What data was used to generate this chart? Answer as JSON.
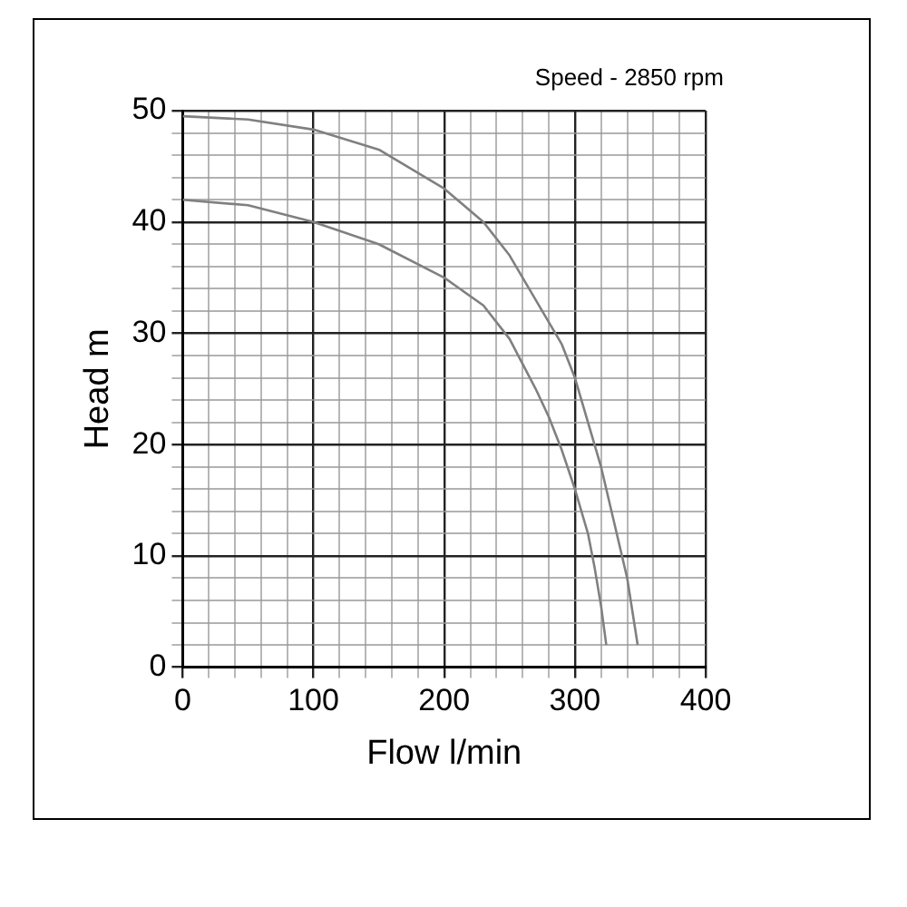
{
  "chart_data": {
    "type": "line",
    "xlabel": "Flow l/min",
    "ylabel": "Head m",
    "annotations": [
      "Speed - 2850 rpm"
    ],
    "xlim": [
      0,
      400
    ],
    "ylim": [
      0,
      50
    ],
    "xticks": [
      0,
      {
        "value": 20,
        "label": null
      },
      {
        "value": 40,
        "label": null
      },
      {
        "value": 60,
        "label": null
      },
      {
        "value": 80,
        "label": null
      },
      100,
      {
        "value": 120,
        "label": null
      },
      {
        "value": 140,
        "label": null
      },
      {
        "value": 160,
        "label": null
      },
      {
        "value": 180,
        "label": null
      },
      200,
      {
        "value": 220,
        "label": null
      },
      {
        "value": 240,
        "label": null
      },
      {
        "value": 260,
        "label": null
      },
      {
        "value": 280,
        "label": null
      },
      300,
      {
        "value": 320,
        "label": null
      },
      {
        "value": 340,
        "label": null
      },
      {
        "value": 360,
        "label": null
      },
      {
        "value": 380,
        "label": null
      },
      400
    ],
    "yticks": [
      0,
      {
        "value": 2,
        "label": null
      },
      {
        "value": 4,
        "label": null
      },
      {
        "value": 6,
        "label": null
      },
      {
        "value": 8,
        "label": null
      },
      10,
      {
        "value": 12,
        "label": null
      },
      {
        "value": 14,
        "label": null
      },
      {
        "value": 16,
        "label": null
      },
      {
        "value": 18,
        "label": null
      },
      20,
      {
        "value": 22,
        "label": null
      },
      {
        "value": 24,
        "label": null
      },
      {
        "value": 26,
        "label": null
      },
      {
        "value": 28,
        "label": null
      },
      30,
      {
        "value": 32,
        "label": null
      },
      {
        "value": 34,
        "label": null
      },
      {
        "value": 36,
        "label": null
      },
      {
        "value": 38,
        "label": null
      },
      40,
      {
        "value": 42,
        "label": null
      },
      {
        "value": 44,
        "label": null
      },
      {
        "value": 46,
        "label": null
      },
      {
        "value": 48,
        "label": null
      },
      50
    ],
    "grid": true,
    "legend": false,
    "marker": "none",
    "line_style": "solid",
    "series": [
      {
        "color": "#808080",
        "x": [
          0,
          50,
          100,
          150,
          200,
          230,
          250,
          270,
          290,
          300,
          310,
          320,
          330,
          340,
          348
        ],
        "values": [
          49.5,
          49.2,
          48.3,
          46.5,
          43,
          40,
          37,
          33,
          29,
          26,
          22,
          18,
          13,
          8,
          2
        ]
      },
      {
        "color": "#808080",
        "x": [
          0,
          50,
          100,
          150,
          200,
          230,
          250,
          270,
          280,
          290,
          300,
          310,
          315,
          320,
          324
        ],
        "values": [
          42,
          41.5,
          40,
          38,
          35,
          32.5,
          29.5,
          25,
          22.5,
          19.5,
          16,
          12,
          9,
          5.5,
          2
        ]
      }
    ]
  }
}
